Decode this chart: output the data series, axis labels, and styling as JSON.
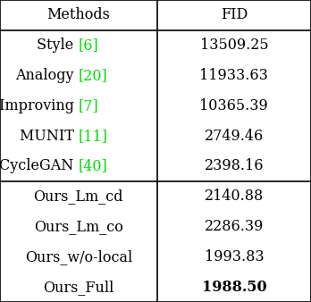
{
  "headers": [
    "Methods",
    "FID"
  ],
  "rows_group1": [
    {
      "base": "Style ",
      "ref": "[6]",
      "fid": "13509.25"
    },
    {
      "base": "Analogy ",
      "ref": "[20]",
      "fid": "11933.63"
    },
    {
      "base": "Improving ",
      "ref": "[7]",
      "fid": "10365.39"
    },
    {
      "base": "MUNIT ",
      "ref": "[11]",
      "fid": "2749.46"
    },
    {
      "base": "CycleGAN ",
      "ref": "[40]",
      "fid": "2398.16"
    }
  ],
  "rows_group2": [
    {
      "method": "Ours_Lm_cd",
      "fid": "2140.88",
      "bold_fid": false
    },
    {
      "method": "Ours_Lm_co",
      "fid": "2286.39",
      "bold_fid": false
    },
    {
      "method": "Ours_w/o-local",
      "fid": "1993.83",
      "bold_fid": false
    },
    {
      "method": "Ours_Full",
      "fid": "1988.50",
      "bold_fid": true
    }
  ],
  "col_split": 0.505,
  "background_color": "#ffffff",
  "border_color": "#000000",
  "text_color": "#000000",
  "green_color": "#00dd00",
  "font_size": 11.5,
  "header_font_size": 11.5
}
